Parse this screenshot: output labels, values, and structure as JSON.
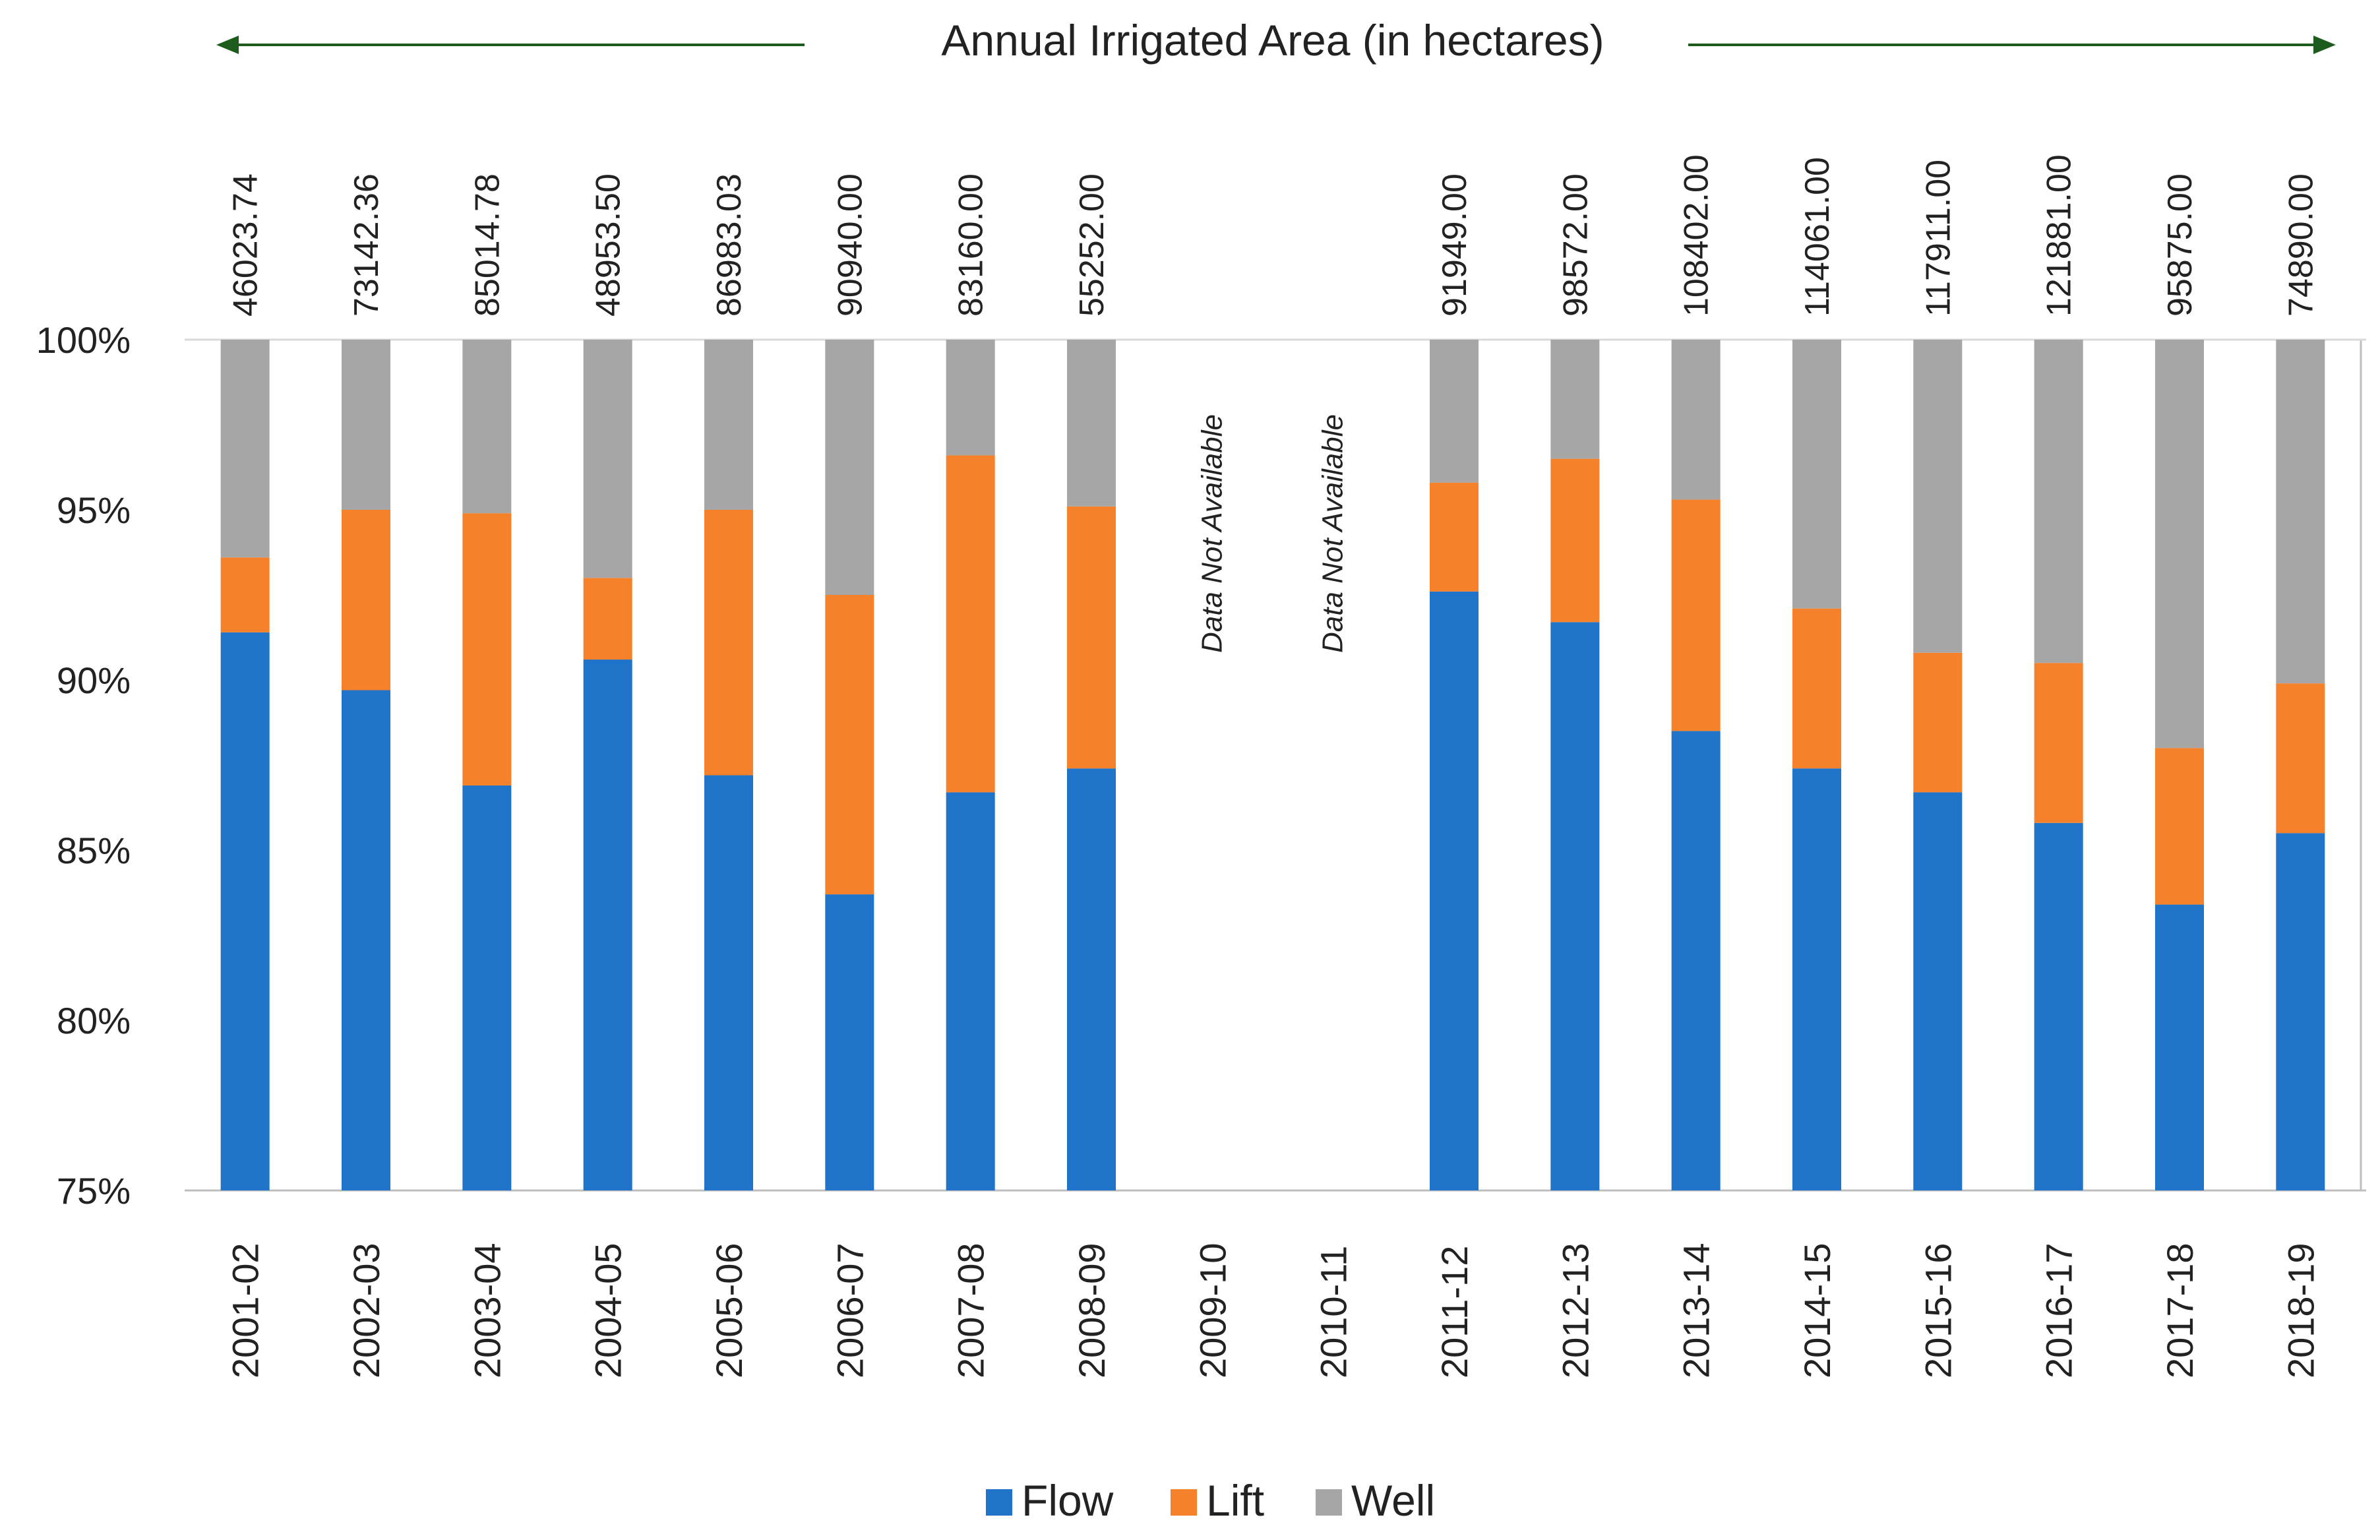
{
  "chart_data": {
    "type": "bar",
    "stacked": true,
    "normalized": true,
    "title": "Annual Irrigated Area (in hectares)",
    "xlabel": "",
    "ylabel": "",
    "ylim": [
      75,
      100
    ],
    "yticks": [
      "75%",
      "80%",
      "85%",
      "90%",
      "95%",
      "100%"
    ],
    "categories": [
      "2001-02",
      "2002-03",
      "2003-04",
      "2004-05",
      "2005-06",
      "2006-07",
      "2007-08",
      "2008-09",
      "2009-10",
      "2010-11",
      "2011-12",
      "2012-13",
      "2013-14",
      "2014-15",
      "2015-16",
      "2016-17",
      "2017-18",
      "2018-19"
    ],
    "annual_totals": [
      "46023.74",
      "73142.36",
      "85014.78",
      "48953.50",
      "86983.03",
      "90940.00",
      "83160.00",
      "55252.00",
      "",
      "",
      "91949.00",
      "98572.00",
      "108402.00",
      "114061.00",
      "117911.00",
      "121881.00",
      "95875.00",
      "74890.00"
    ],
    "series": [
      {
        "name": "Flow",
        "color": "#1f73c8",
        "values": [
          91.4,
          89.7,
          86.9,
          90.6,
          87.2,
          83.7,
          86.7,
          87.4,
          null,
          null,
          92.6,
          91.7,
          88.5,
          87.4,
          86.7,
          85.8,
          83.4,
          85.5
        ]
      },
      {
        "name": "Lift",
        "color": "#f5822a",
        "values": [
          2.2,
          5.3,
          8.0,
          2.4,
          7.8,
          8.8,
          9.9,
          7.7,
          null,
          null,
          3.2,
          4.8,
          6.8,
          4.7,
          4.1,
          4.7,
          4.6,
          4.4
        ]
      },
      {
        "name": "Well",
        "color": "#a6a6a6",
        "values": [
          6.4,
          5.0,
          5.1,
          7.0,
          5.0,
          7.5,
          3.4,
          4.9,
          null,
          null,
          4.2,
          3.5,
          4.7,
          7.9,
          9.2,
          9.5,
          12.0,
          10.1
        ]
      }
    ],
    "annotations": [
      {
        "category": "2009-10",
        "text": "Data Not Available"
      },
      {
        "category": "2010-11",
        "text": "Data Not Available"
      }
    ],
    "legend": {
      "position": "bottom",
      "items": [
        "Flow",
        "Lift",
        "Well"
      ]
    },
    "grid": false
  }
}
